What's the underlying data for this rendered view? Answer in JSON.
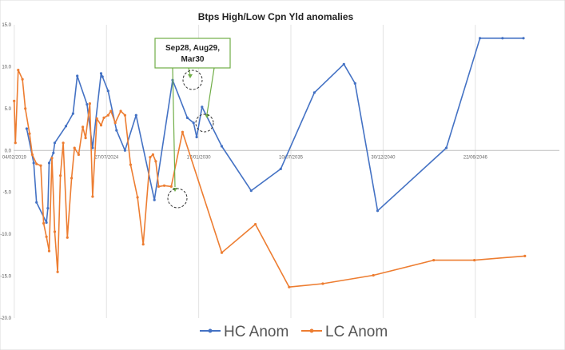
{
  "chart_data": {
    "type": "line",
    "title": "Btps High/Low Cpn Yld anomalies",
    "xlabel": "",
    "ylabel": "",
    "ylim": [
      -20.0,
      15.0
    ],
    "y_ticks": [
      15.0,
      10.0,
      5.0,
      0.0,
      -5.0,
      -10.0,
      -15.0,
      -20.0
    ],
    "y_tick_labels": [
      "15.0",
      "10.0",
      "5.0",
      "0.0",
      "-5.0",
      "-10.0",
      "-15.0",
      "-20.0"
    ],
    "x_ticks": [
      "2019-02-04",
      "2024-07-27",
      "2030-01-17",
      "2035-07-10",
      "2040-12-30",
      "2046-06-22"
    ],
    "x_tick_labels": [
      "04/02/2019",
      "27/07/2024",
      "17/01/2030",
      "10/07/2035",
      "30/12/2040",
      "22/06/2046"
    ],
    "x_range": [
      "2019-01-20",
      "2051-06-20"
    ],
    "grid": "vertical",
    "legend_position": "bottom",
    "colors": {
      "HC Anom": "#4472C4",
      "LC Anom": "#ED7D31",
      "circle": "#333333",
      "callout_border": "#70AD47",
      "callout_arrow": "#70AD47"
    },
    "series": [
      {
        "name": "HC Anom",
        "x": [
          "2019-11-01",
          "2020-04-01",
          "2020-06-01",
          "2021-01-01",
          "2021-02-01",
          "2021-03-01",
          "2021-06-01",
          "2021-07-01",
          "2022-03-01",
          "2022-08-01",
          "2022-11-01",
          "2023-06-01",
          "2023-10-01",
          "2024-04-01",
          "2024-05-01",
          "2024-09-01",
          "2025-03-01",
          "2025-09-01",
          "2026-05-01",
          "2027-06-01",
          "2028-07-01",
          "2029-05-15",
          "2029-09-28",
          "2029-12-05",
          "2030-03-30",
          "2031-06-01",
          "2033-03-01",
          "2034-12-01",
          "2036-12-01",
          "2038-09-01",
          "2039-05-01",
          "2040-09-01",
          "2044-10-01",
          "2046-10-01",
          "2048-02-01",
          "2049-05-01"
        ],
        "y": [
          2.6,
          -1.5,
          -6.2,
          -8.6,
          -6.9,
          -1.5,
          -0.3,
          0.9,
          2.9,
          4.4,
          8.9,
          5.5,
          0.3,
          9.2,
          8.8,
          7.1,
          2.4,
          0.0,
          4.2,
          -5.9,
          8.4,
          3.9,
          3.3,
          1.6,
          5.2,
          0.5,
          -4.8,
          -2.2,
          6.9,
          10.3,
          8.0,
          -7.2,
          0.3,
          13.4,
          13.4,
          13.4
        ]
      },
      {
        "name": "LC Anom",
        "x": [
          "2019-02-01",
          "2019-03-01",
          "2019-05-01",
          "2019-08-01",
          "2019-10-01",
          "2020-01-01",
          "2020-03-01",
          "2020-06-01",
          "2020-09-01",
          "2020-11-01",
          "2021-01-01",
          "2021-03-01",
          "2021-05-01",
          "2021-07-01",
          "2021-09-01",
          "2021-11-01",
          "2022-01-01",
          "2022-04-01",
          "2022-07-01",
          "2022-09-01",
          "2022-12-01",
          "2023-03-01",
          "2023-05-01",
          "2023-08-01",
          "2023-10-01",
          "2024-01-01",
          "2024-04-01",
          "2024-06-01",
          "2024-09-01",
          "2024-11-01",
          "2025-02-01",
          "2025-06-01",
          "2025-09-01",
          "2026-01-01",
          "2026-06-01",
          "2026-10-01",
          "2027-03-01",
          "2027-05-01",
          "2027-07-01",
          "2027-09-01",
          "2028-01-01",
          "2028-06-01",
          "2029-02-01",
          "2031-06-01",
          "2033-06-01",
          "2035-06-01",
          "2037-06-01",
          "2040-06-01",
          "2044-01-01",
          "2046-06-01",
          "2049-06-01"
        ],
        "y": [
          5.9,
          0.9,
          9.6,
          8.5,
          5.0,
          2.0,
          -0.5,
          -1.6,
          -1.8,
          -8.7,
          -10.3,
          -12.0,
          -0.9,
          -9.7,
          -14.5,
          -3.0,
          0.9,
          -10.4,
          -3.3,
          0.3,
          -0.5,
          2.8,
          1.5,
          5.6,
          -5.5,
          3.8,
          3.0,
          3.9,
          4.2,
          4.7,
          3.3,
          4.7,
          4.2,
          -1.7,
          -5.6,
          -11.2,
          -0.8,
          -0.5,
          -1.3,
          -4.3,
          -4.2,
          -4.3,
          2.2,
          -12.2,
          -8.8,
          -16.3,
          -15.9,
          -14.9,
          -13.1,
          -13.1,
          -12.6
        ]
      }
    ],
    "annotation": {
      "text_lines": [
        "Sep28, Aug29,",
        "Mar30"
      ]
    }
  }
}
